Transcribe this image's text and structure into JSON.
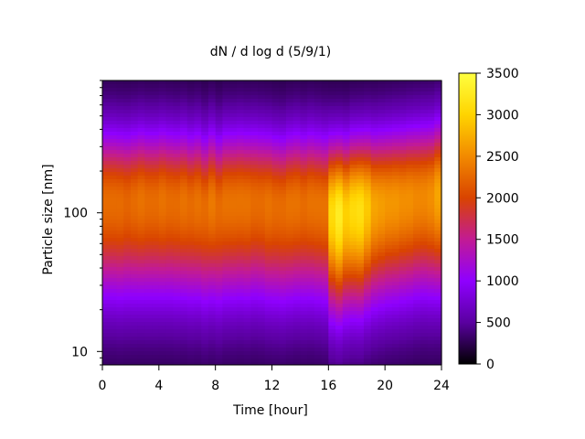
{
  "chart_data": {
    "type": "heatmap",
    "title": "dN / d log d (5/9/1)",
    "xlabel": "Time [hour]",
    "ylabel": "Particle size [nm]",
    "xlim": [
      0,
      24
    ],
    "ylim": [
      8,
      900
    ],
    "y_scale": "log",
    "x_ticks": [
      0,
      4,
      8,
      12,
      16,
      20,
      24
    ],
    "y_ticks": [
      10,
      100
    ],
    "colorbar": {
      "range": [
        0,
        3500
      ],
      "ticks": [
        0,
        500,
        1000,
        1500,
        2000,
        2500,
        3000,
        3500
      ],
      "colors": [
        "#000000",
        "#5a00a0",
        "#8f00ff",
        "#c21b93",
        "#d94400",
        "#f28a00",
        "#ffd400",
        "#ffff40"
      ]
    },
    "x": [
      0,
      0.5,
      1,
      1.5,
      2,
      2.5,
      3,
      3.5,
      4,
      4.5,
      5,
      5.5,
      6,
      6.5,
      7,
      7.5,
      8,
      8.5,
      9,
      9.5,
      10,
      10.5,
      11,
      11.5,
      12,
      12.5,
      13,
      13.5,
      14,
      14.5,
      15,
      15.5,
      16,
      16.5,
      17,
      17.5,
      18,
      18.5,
      19,
      19.5,
      20,
      20.5,
      21,
      21.5,
      22,
      22.5,
      23,
      23.5,
      24
    ],
    "peak_diameter_nm": [
      120,
      120,
      118,
      118,
      120,
      122,
      120,
      120,
      122,
      120,
      118,
      120,
      115,
      118,
      110,
      118,
      110,
      118,
      118,
      120,
      118,
      120,
      118,
      115,
      112,
      110,
      115,
      118,
      115,
      118,
      115,
      112,
      100,
      98,
      100,
      105,
      105,
      110,
      112,
      115,
      118,
      120,
      122,
      125,
      128,
      130,
      130,
      135,
      135
    ],
    "peak_value": [
      2100,
      2100,
      2100,
      2050,
      2100,
      2150,
      2100,
      2100,
      2150,
      2100,
      2100,
      2150,
      2100,
      2150,
      2100,
      2200,
      2100,
      2150,
      2150,
      2150,
      2150,
      2100,
      2100,
      2150,
      2100,
      2100,
      2150,
      2150,
      2100,
      2150,
      2150,
      2150,
      2900,
      3100,
      2800,
      2900,
      2950,
      2750,
      2500,
      2450,
      2400,
      2400,
      2350,
      2350,
      2300,
      2300,
      2350,
      2500,
      2200
    ]
  }
}
